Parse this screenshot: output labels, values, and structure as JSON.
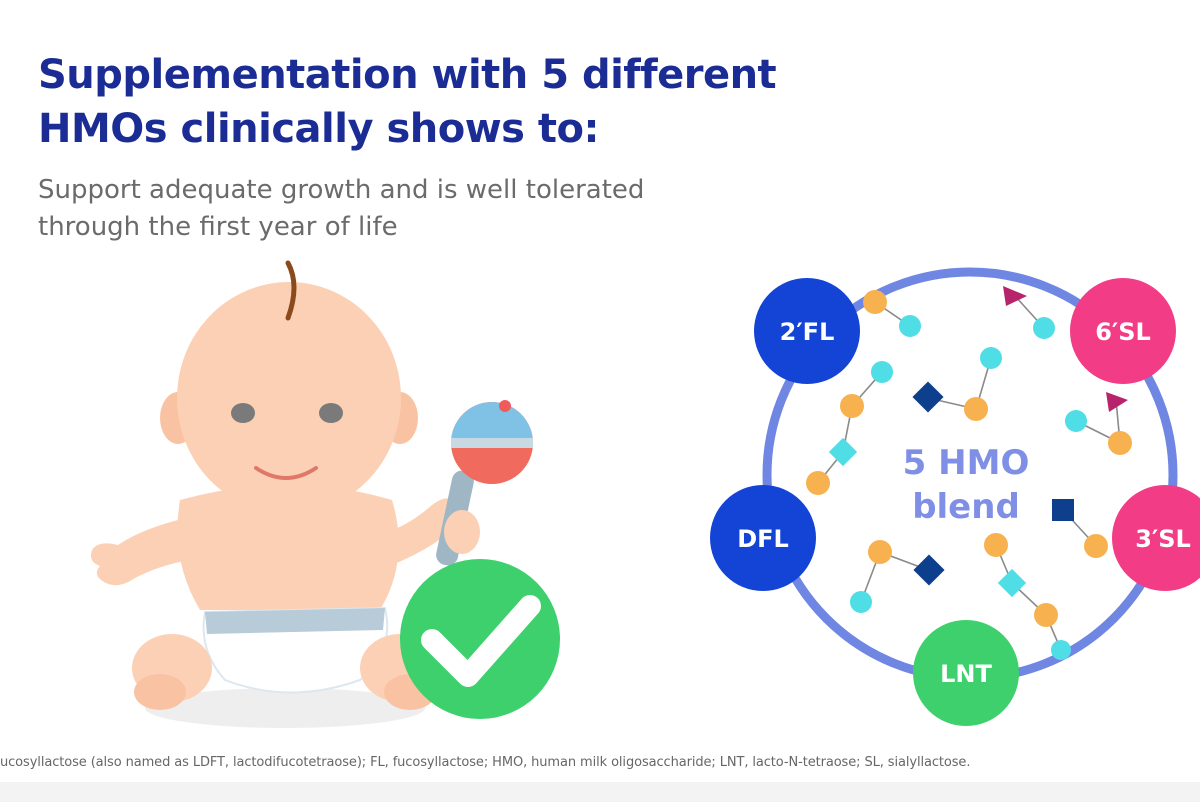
{
  "heading": {
    "line1": "Supplementation with 5 different",
    "line2": "HMOs clinically shows to:"
  },
  "subheading": {
    "line1": "Support adequate growth and is well tolerated",
    "line2": "through the first year of life"
  },
  "blend": {
    "center_line1": "5 HMO",
    "center_line2": "blend",
    "bubbles": [
      {
        "label": "2′FL",
        "color": "#1444d6"
      },
      {
        "label": "6′SL",
        "color": "#f23d86"
      },
      {
        "label": "DFL",
        "color": "#1444d6"
      },
      {
        "label": "3′SL",
        "color": "#f23d86"
      },
      {
        "label": "LNT",
        "color": "#3dd06d"
      }
    ],
    "ring_color": "#6f86e3"
  },
  "footnote": "ucosyllactose (also named as LDFT, lactodifucotetraose); FL, fucosyllactose; HMO, human milk oligosaccharide; LNT, lacto-N-tetraose; SL, sialyllactose.",
  "colors": {
    "heading": "#1b2d94",
    "check": "#3dd06d",
    "orange_node": "#f7b14f",
    "cyan_node": "#4fdde6",
    "navy_square": "#0e3f8c",
    "magenta_triangle": "#b8246b"
  }
}
